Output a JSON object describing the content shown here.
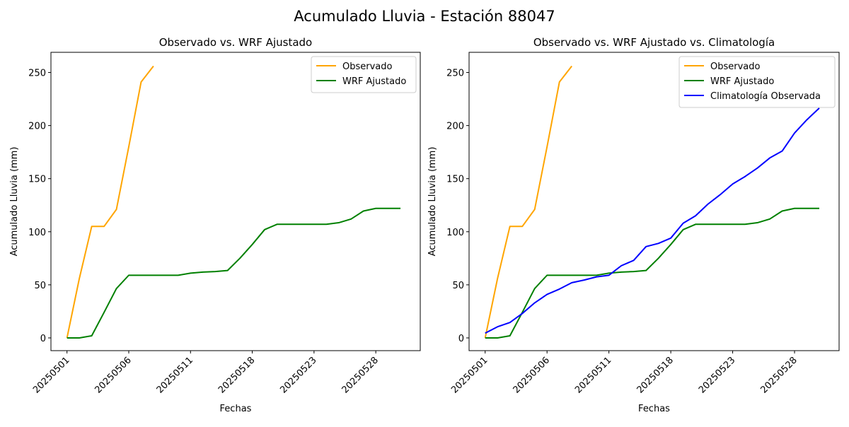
{
  "figure": {
    "title": "Acumulado Lluvia - Estación 88047"
  },
  "chart_data": [
    {
      "type": "line",
      "title": "Observado vs. WRF Ajustado",
      "xlabel": "Fechas",
      "ylabel": "Acumulado Lluvia (mm)",
      "ylim": [
        -12,
        269
      ],
      "yticks": [
        0,
        50,
        100,
        150,
        200,
        250
      ],
      "xlim": [
        -1.3,
        28.6
      ],
      "xticks": [
        {
          "x": 0,
          "label": "20250501"
        },
        {
          "x": 5,
          "label": "20250506"
        },
        {
          "x": 10,
          "label": "20250511"
        },
        {
          "x": 15,
          "label": "20250518"
        },
        {
          "x": 20,
          "label": "20250523"
        },
        {
          "x": 25,
          "label": "20250528"
        }
      ],
      "legend": "top-right",
      "grid": false,
      "series": [
        {
          "name": "Observado",
          "color": "#ffa500",
          "x": [
            0,
            1,
            2,
            3,
            4,
            5,
            6,
            7
          ],
          "y": [
            0,
            56,
            105,
            105,
            121,
            180,
            241,
            256
          ]
        },
        {
          "name": "WRF Ajustado",
          "color": "#008000",
          "x": [
            0,
            1,
            2,
            3,
            4,
            5,
            6,
            7,
            8,
            9,
            10,
            11,
            12,
            13,
            14,
            15,
            16,
            17,
            18,
            19,
            20,
            21,
            22,
            23,
            24,
            25,
            26,
            27
          ],
          "y": [
            0,
            0,
            2,
            24,
            46.5,
            59,
            59,
            59,
            59,
            59,
            61,
            62,
            62.5,
            63.5,
            75,
            88,
            102,
            107,
            107,
            107,
            107,
            107,
            108.5,
            112,
            119.5,
            122,
            122,
            122
          ]
        }
      ]
    },
    {
      "type": "line",
      "title": "Observado vs. WRF Ajustado vs. Climatología",
      "xlabel": "Fechas",
      "ylabel": "Acumulado Lluvia (mm)",
      "ylim": [
        -12,
        269
      ],
      "yticks": [
        0,
        50,
        100,
        150,
        200,
        250
      ],
      "xlim": [
        -1.3,
        28.6
      ],
      "xticks": [
        {
          "x": 0,
          "label": "20250501"
        },
        {
          "x": 5,
          "label": "20250506"
        },
        {
          "x": 10,
          "label": "20250511"
        },
        {
          "x": 15,
          "label": "20250518"
        },
        {
          "x": 20,
          "label": "20250523"
        },
        {
          "x": 25,
          "label": "20250528"
        }
      ],
      "legend": "top-right",
      "grid": false,
      "series": [
        {
          "name": "Observado",
          "color": "#ffa500",
          "x": [
            0,
            1,
            2,
            3,
            4,
            5,
            6,
            7
          ],
          "y": [
            0,
            56,
            105,
            105,
            121,
            180,
            241,
            256
          ]
        },
        {
          "name": "WRF Ajustado",
          "color": "#008000",
          "x": [
            0,
            1,
            2,
            3,
            4,
            5,
            6,
            7,
            8,
            9,
            10,
            11,
            12,
            13,
            14,
            15,
            16,
            17,
            18,
            19,
            20,
            21,
            22,
            23,
            24,
            25,
            26,
            27
          ],
          "y": [
            0,
            0,
            2,
            24,
            46.5,
            59,
            59,
            59,
            59,
            59,
            61,
            62,
            62.5,
            63.5,
            75,
            88,
            102,
            107,
            107,
            107,
            107,
            107,
            108.5,
            112,
            119.5,
            122,
            122,
            122
          ]
        },
        {
          "name": "Climatología Observada",
          "color": "#0000ff",
          "x": [
            0,
            1,
            2,
            3,
            4,
            5,
            6,
            7,
            8,
            9,
            10,
            11,
            12,
            13,
            14,
            15,
            16,
            17,
            18,
            19,
            20,
            21,
            22,
            23,
            24,
            25,
            26,
            27
          ],
          "y": [
            4.5,
            10.5,
            14.5,
            23,
            33,
            41,
            46,
            52,
            54.5,
            57.5,
            59,
            68,
            73,
            86,
            89,
            94,
            108,
            115,
            126,
            135,
            145,
            152,
            160,
            169.5,
            176,
            193,
            205.5,
            216.5
          ]
        }
      ]
    }
  ]
}
